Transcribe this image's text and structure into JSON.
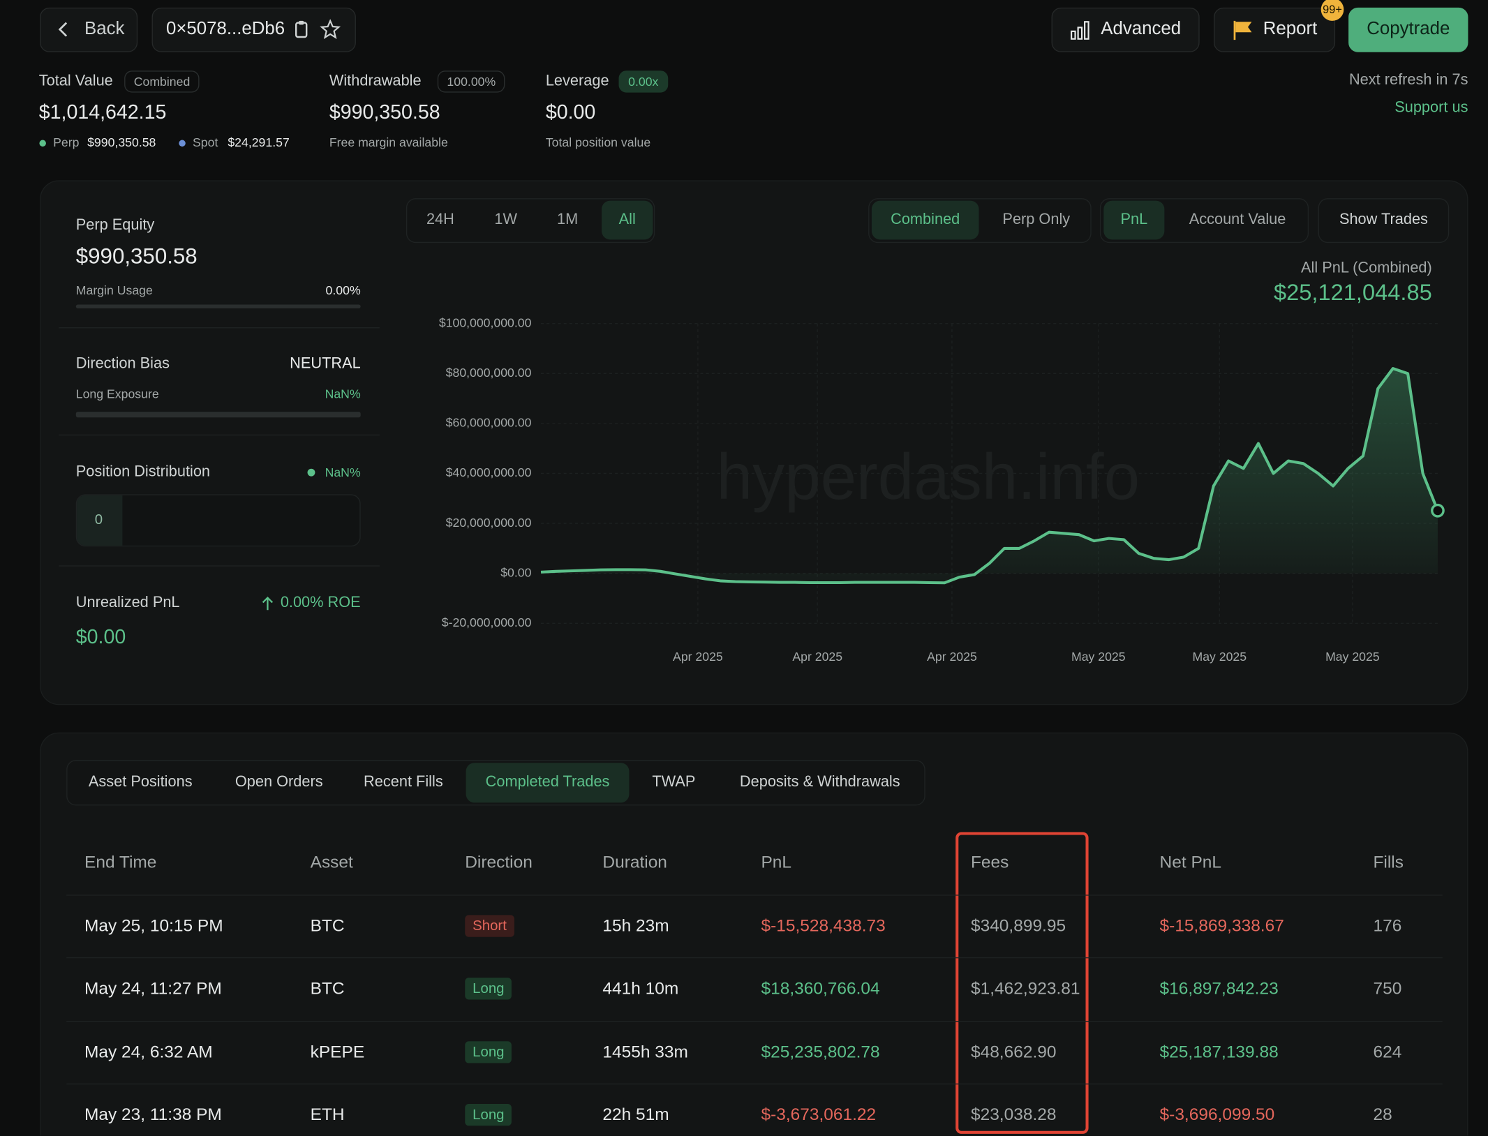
{
  "header": {
    "back": "Back",
    "address": "0×5078...eDb6",
    "advanced": "Advanced",
    "report": "Report",
    "report_badge": "99+",
    "copytrade": "Copytrade"
  },
  "summary": {
    "total_value": {
      "label": "Total Value",
      "badge": "Combined",
      "value": "$1,014,642.15",
      "perp_label": "Perp",
      "perp_value": "$990,350.58",
      "spot_label": "Spot",
      "spot_value": "$24,291.57"
    },
    "withdrawable": {
      "label": "Withdrawable",
      "badge": "100.00%",
      "value": "$990,350.58",
      "note": "Free margin available"
    },
    "leverage": {
      "label": "Leverage",
      "badge": "0.00x",
      "value": "$0.00",
      "note": "Total position value"
    },
    "refresh": "Next refresh in 7s",
    "support": "Support us"
  },
  "side_panel": {
    "perp_equity": {
      "label": "Perp Equity",
      "value": "$990,350.58",
      "usage_label": "Margin Usage",
      "usage_value": "0.00%"
    },
    "direction_bias": {
      "label": "Direction Bias",
      "value": "NEUTRAL",
      "exposure_label": "Long Exposure",
      "exposure_value": "NaN%"
    },
    "position_distribution": {
      "label": "Position Distribution",
      "value": "NaN%",
      "count": "0"
    },
    "unrealized_pnl": {
      "label": "Unrealized PnL",
      "roe": "0.00% ROE",
      "value": "$0.00"
    }
  },
  "chart_controls": {
    "ranges": [
      "24H",
      "1W",
      "1M",
      "All"
    ],
    "active_range": 3,
    "scopes": [
      "Combined",
      "Perp Only"
    ],
    "active_scope": 0,
    "metrics": [
      "PnL",
      "Account Value"
    ],
    "active_metric": 0,
    "show_trades": "Show Trades"
  },
  "chart_data": {
    "type": "area",
    "title": "All PnL (Combined)",
    "subtitle": "$25,121,044.85",
    "watermark": "hyperdash.info",
    "color": "#5cc08a",
    "values": [
      500000,
      800000,
      1000000,
      1200000,
      1400000,
      1500000,
      1500000,
      1400000,
      800000,
      -200000,
      -1200000,
      -2200000,
      -3000000,
      -3300000,
      -3400000,
      -3500000,
      -3600000,
      -3600000,
      -3700000,
      -3700000,
      -3700000,
      -3600000,
      -3600000,
      -3600000,
      -3600000,
      -3600000,
      -3700000,
      -3800000,
      -1500000,
      -500000,
      4000000,
      10000000,
      10000000,
      13000000,
      16500000,
      16000000,
      15500000,
      13000000,
      14000000,
      13500000,
      8000000,
      6000000,
      5500000,
      6500000,
      10000000,
      35000000,
      45000000,
      42000000,
      52000000,
      40000000,
      45000000,
      44000000,
      40000000,
      35000000,
      42000000,
      47000000,
      74000000,
      82000000,
      80000000,
      40000000,
      25121044.85
    ],
    "xlim": [
      0,
      60
    ],
    "xticks": [
      {
        "value": 10.5,
        "label": "Apr 2025"
      },
      {
        "value": 18.5,
        "label": "Apr 2025"
      },
      {
        "value": 27.5,
        "label": "Apr 2025"
      },
      {
        "value": 37.3,
        "label": "May 2025"
      },
      {
        "value": 45.4,
        "label": "May 2025"
      },
      {
        "value": 54.3,
        "label": "May 2025"
      }
    ],
    "ylim": [
      -20000000,
      100000000
    ],
    "yticks": [
      {
        "value": -20000000,
        "label": "$-20,000,000.00"
      },
      {
        "value": 0,
        "label": "$0.00"
      },
      {
        "value": 20000000,
        "label": "$20,000,000.00"
      },
      {
        "value": 40000000,
        "label": "$40,000,000.00"
      },
      {
        "value": 60000000,
        "label": "$60,000,000.00"
      },
      {
        "value": 80000000,
        "label": "$80,000,000.00"
      },
      {
        "value": 100000000,
        "label": "$100,000,000.00"
      }
    ],
    "grid": true
  },
  "tabs": {
    "items": [
      "Asset Positions",
      "Open Orders",
      "Recent Fills",
      "Completed Trades",
      "TWAP",
      "Deposits & Withdrawals"
    ],
    "active": 3
  },
  "table": {
    "columns": [
      "End Time",
      "Asset",
      "Direction",
      "Duration",
      "PnL",
      "Fees",
      "Net PnL",
      "Fills"
    ],
    "rows": [
      [
        "May 25, 10:15 PM",
        "BTC",
        "Short",
        "15h 23m",
        "$-15,528,438.73",
        "$340,899.95",
        "$-15,869,338.67",
        "176"
      ],
      [
        "May 24, 11:27 PM",
        "BTC",
        "Long",
        "441h 10m",
        "$18,360,766.04",
        "$1,462,923.81",
        "$16,897,842.23",
        "750"
      ],
      [
        "May 24, 6:32 AM",
        "kPEPE",
        "Long",
        "1455h 33m",
        "$25,235,802.78",
        "$48,662.90",
        "$25,187,139.88",
        "624"
      ],
      [
        "May 23, 11:38 PM",
        "ETH",
        "Long",
        "22h 51m",
        "$-3,673,061.22",
        "$23,038.28",
        "$-3,696,099.50",
        "28"
      ]
    ]
  }
}
